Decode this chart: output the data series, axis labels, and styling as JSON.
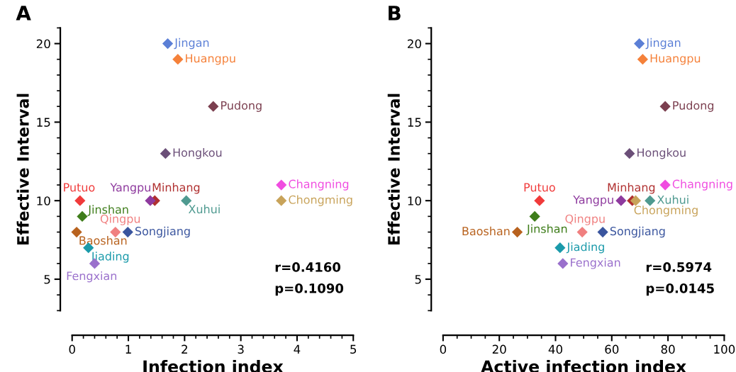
{
  "chart_data": [
    {
      "type": "scatter",
      "title": "A",
      "xlabel": "Infection index",
      "ylabel": "Effective Interval",
      "xlim": [
        0,
        5
      ],
      "xticks": [
        0,
        1,
        2,
        3,
        4,
        5
      ],
      "ylim": [
        3,
        21
      ],
      "yticks": [
        5,
        10,
        15,
        20
      ],
      "marker": "diamond",
      "grid": false,
      "annotations": [
        "r=0.4160",
        "p=0.1090"
      ],
      "series": [
        {
          "name": "Jingan",
          "color": "#5b7fd6",
          "x": [
            1.7
          ],
          "values": [
            20
          ]
        },
        {
          "name": "Huangpu",
          "color": "#f5813a",
          "x": [
            1.88
          ],
          "values": [
            19
          ]
        },
        {
          "name": "Pudong",
          "color": "#7b3f4f",
          "x": [
            2.51
          ],
          "values": [
            16
          ]
        },
        {
          "name": "Hongkou",
          "color": "#6b4f78",
          "x": [
            1.66
          ],
          "values": [
            13
          ]
        },
        {
          "name": "Changning",
          "color": "#f04ce0",
          "x": [
            3.72
          ],
          "values": [
            11
          ]
        },
        {
          "name": "Chongming",
          "color": "#c8a35a",
          "x": [
            3.72
          ],
          "values": [
            10
          ]
        },
        {
          "name": "Putuo",
          "color": "#f03a3a",
          "x": [
            0.14
          ],
          "values": [
            10
          ]
        },
        {
          "name": "Yangpu",
          "color": "#8e3a9e",
          "x": [
            1.39
          ],
          "values": [
            10
          ]
        },
        {
          "name": "Minhang",
          "color": "#b03030",
          "x": [
            1.47
          ],
          "values": [
            10
          ]
        },
        {
          "name": "Xuhui",
          "color": "#4f9a90",
          "x": [
            2.03
          ],
          "values": [
            10
          ]
        },
        {
          "name": "Jinshan",
          "color": "#3e7d1a",
          "x": [
            0.18
          ],
          "values": [
            9
          ]
        },
        {
          "name": "Baoshan",
          "color": "#b8621e",
          "x": [
            0.08
          ],
          "values": [
            8
          ]
        },
        {
          "name": "Qingpu",
          "color": "#f08080",
          "x": [
            0.77
          ],
          "values": [
            8
          ]
        },
        {
          "name": "Songjiang",
          "color": "#3a559e",
          "x": [
            0.99
          ],
          "values": [
            8
          ]
        },
        {
          "name": "Jiading",
          "color": "#1a9aaa",
          "x": [
            0.29
          ],
          "values": [
            7
          ]
        },
        {
          "name": "Fengxian",
          "color": "#9a70cc",
          "x": [
            0.4
          ],
          "values": [
            6
          ]
        }
      ]
    },
    {
      "type": "scatter",
      "title": "B",
      "xlabel": "Active infection index",
      "ylabel": "Effective Interval",
      "xlim": [
        0,
        100
      ],
      "xticks": [
        0,
        20,
        40,
        60,
        80,
        100
      ],
      "ylim": [
        3,
        21
      ],
      "yticks": [
        5,
        10,
        15,
        20
      ],
      "marker": "diamond",
      "grid": false,
      "annotations": [
        "r=0.5974",
        "p=0.0145"
      ],
      "series": [
        {
          "name": "Jingan",
          "color": "#5b7fd6",
          "x": [
            69.8
          ],
          "values": [
            20
          ]
        },
        {
          "name": "Huangpu",
          "color": "#f5813a",
          "x": [
            71.0
          ],
          "values": [
            19
          ]
        },
        {
          "name": "Pudong",
          "color": "#7b3f4f",
          "x": [
            79.0
          ],
          "values": [
            16
          ]
        },
        {
          "name": "Hongkou",
          "color": "#6b4f78",
          "x": [
            66.3
          ],
          "values": [
            13
          ]
        },
        {
          "name": "Changning",
          "color": "#f04ce0",
          "x": [
            79.0
          ],
          "values": [
            11
          ]
        },
        {
          "name": "Chongming",
          "color": "#c8a35a",
          "x": [
            68.5
          ],
          "values": [
            10
          ]
        },
        {
          "name": "Putuo",
          "color": "#f03a3a",
          "x": [
            34.3
          ],
          "values": [
            10
          ]
        },
        {
          "name": "Yangpu",
          "color": "#8e3a9e",
          "x": [
            63.3
          ],
          "values": [
            10
          ]
        },
        {
          "name": "Minhang",
          "color": "#b03030",
          "x": [
            67.3
          ],
          "values": [
            10
          ]
        },
        {
          "name": "Xuhui",
          "color": "#4f9a90",
          "x": [
            73.6
          ],
          "values": [
            10
          ]
        },
        {
          "name": "Jinshan",
          "color": "#3e7d1a",
          "x": [
            32.6
          ],
          "values": [
            9
          ]
        },
        {
          "name": "Baoshan",
          "color": "#b8621e",
          "x": [
            26.4
          ],
          "values": [
            8
          ]
        },
        {
          "name": "Qingpu",
          "color": "#f08080",
          "x": [
            49.5
          ],
          "values": [
            8
          ]
        },
        {
          "name": "Songjiang",
          "color": "#3a559e",
          "x": [
            56.8
          ],
          "values": [
            8
          ]
        },
        {
          "name": "Jiading",
          "color": "#1a9aaa",
          "x": [
            41.6
          ],
          "values": [
            7
          ]
        },
        {
          "name": "Fengxian",
          "color": "#9a70cc",
          "x": [
            42.6
          ],
          "values": [
            6
          ]
        }
      ]
    }
  ]
}
